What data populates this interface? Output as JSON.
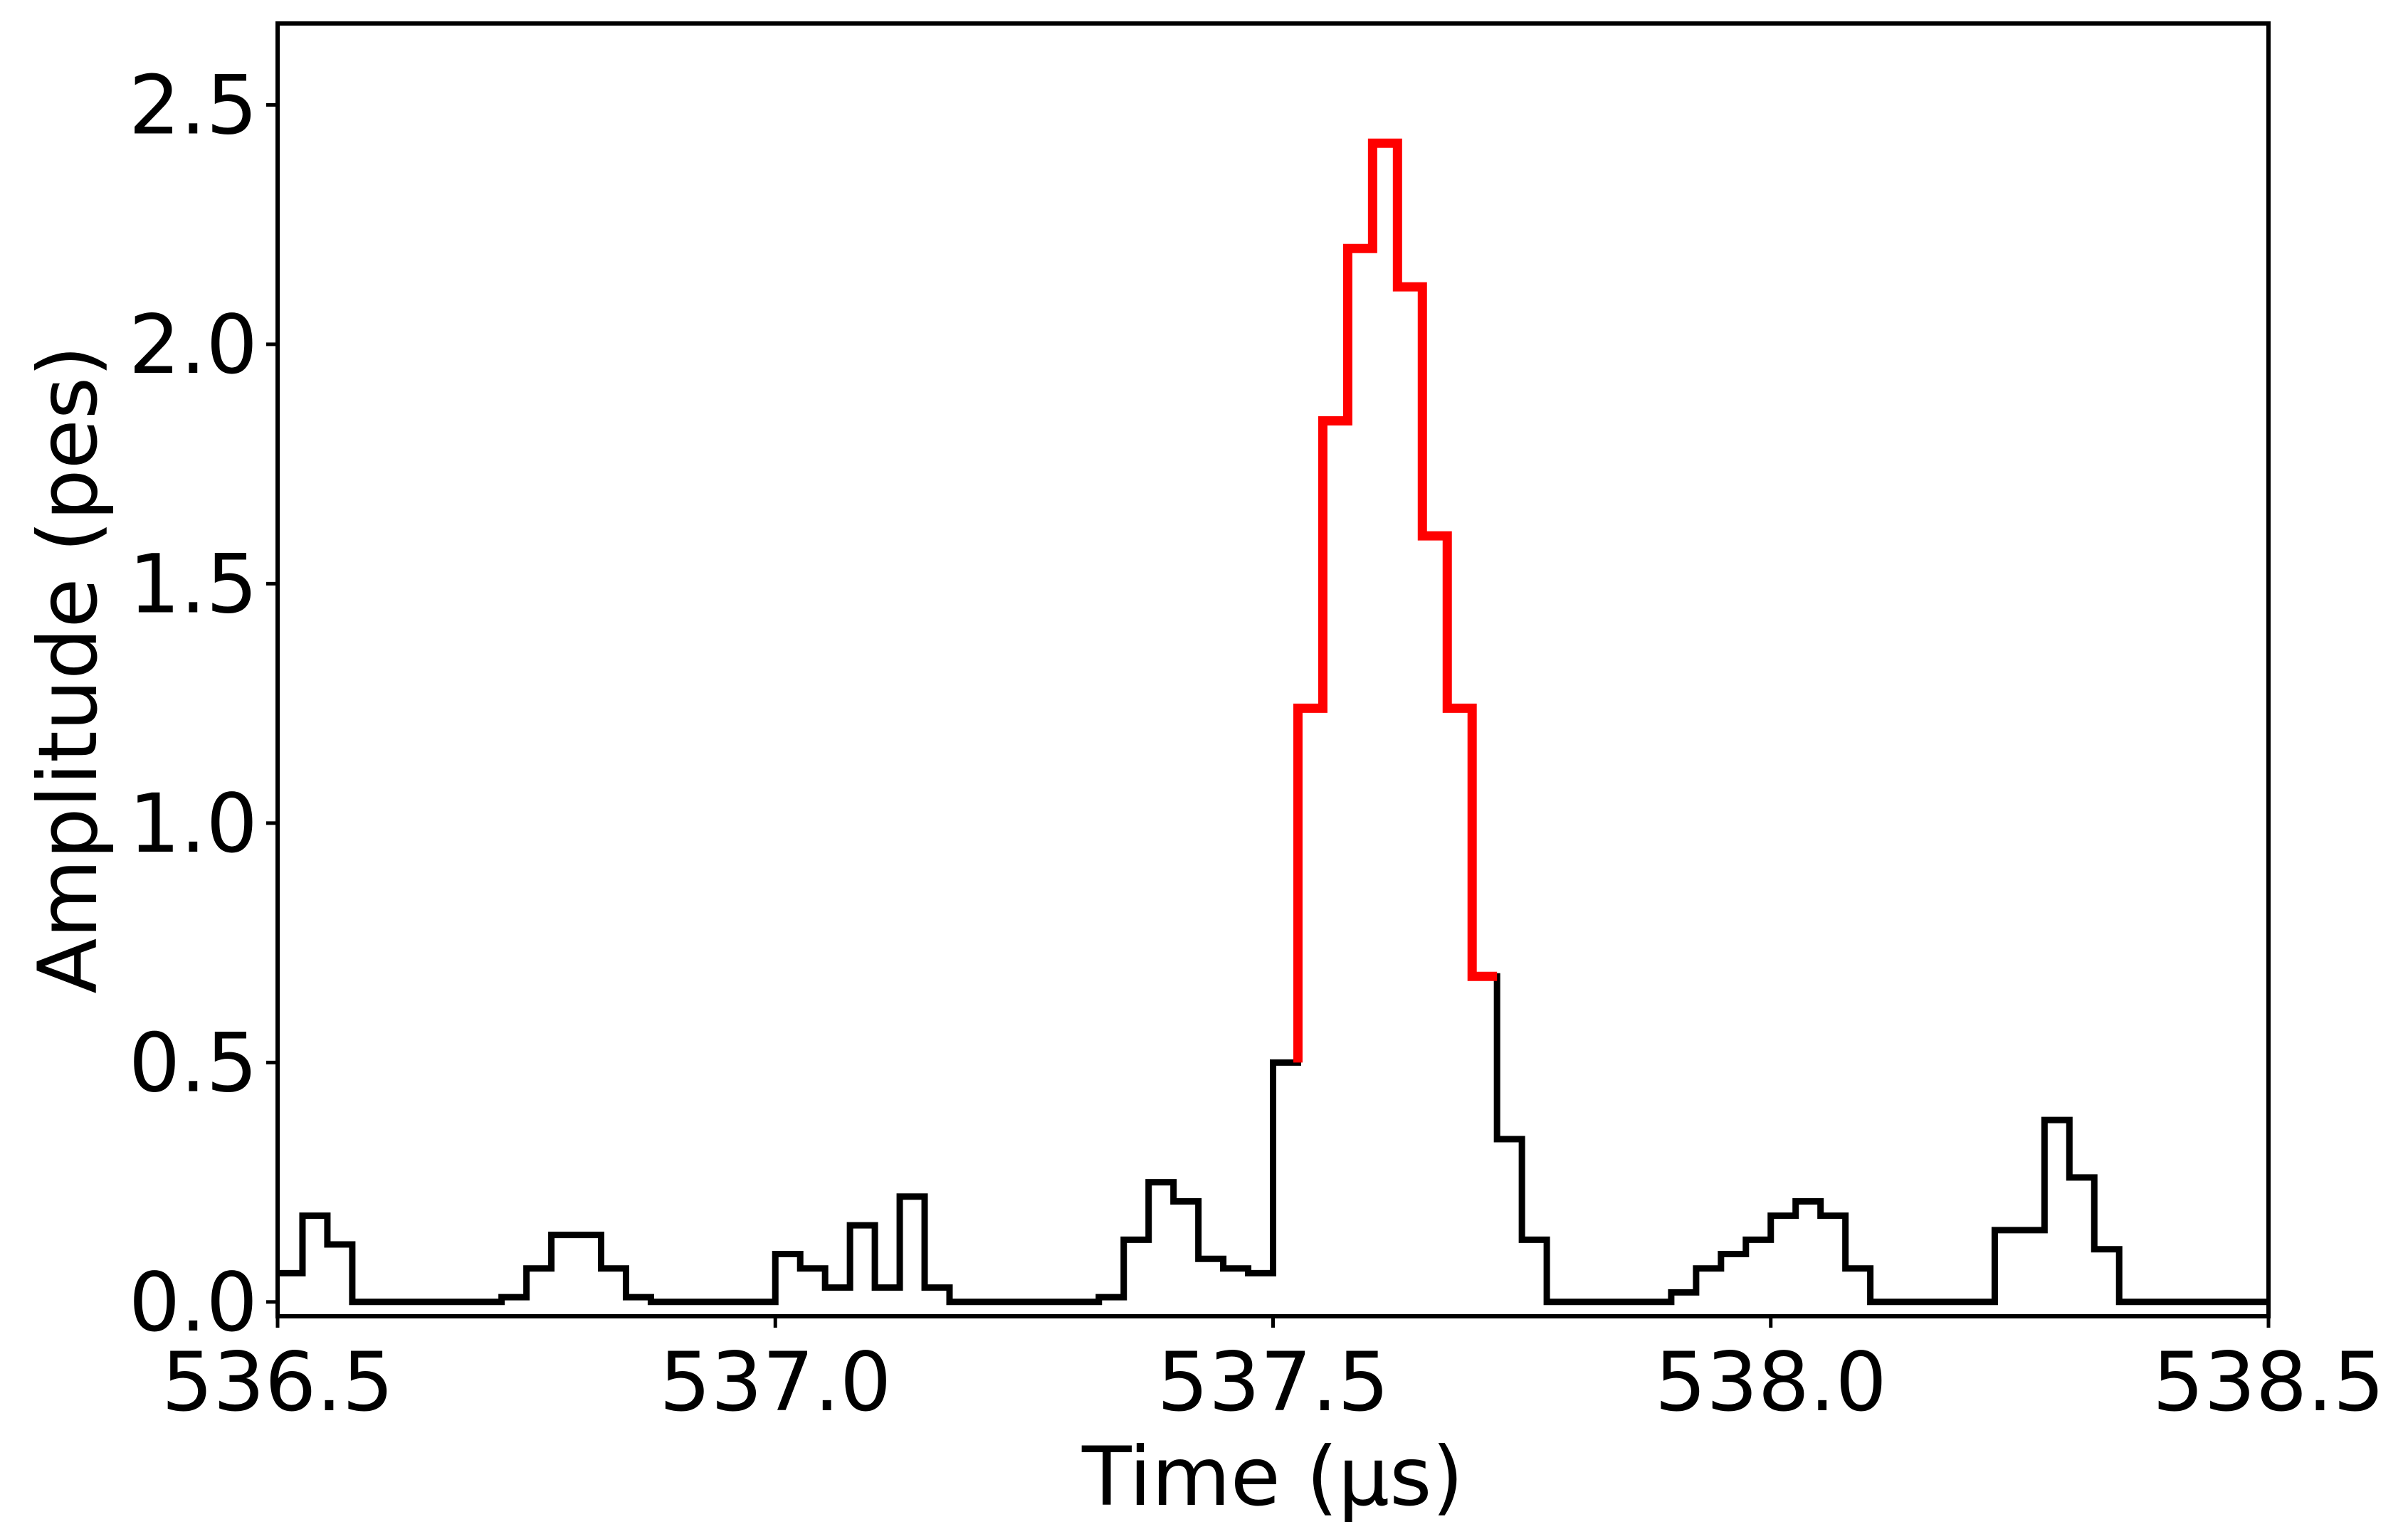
{
  "chart_data": {
    "type": "line",
    "title": "",
    "xlabel": "Time (μs)",
    "ylabel": "Amplitude (pes)",
    "xlim": [
      536.5,
      538.5
    ],
    "ylim": [
      -0.03,
      2.67
    ],
    "xticks": [
      "536.5",
      "537.0",
      "537.5",
      "538.0",
      "538.5"
    ],
    "yticks": [
      "0.0",
      "0.5",
      "1.0",
      "1.5",
      "2.0",
      "2.5"
    ],
    "grid": false,
    "legend": "none",
    "step_width": 0.025,
    "series": [
      {
        "color": "#000000",
        "x": [
          536.5,
          536.525,
          536.55,
          536.575,
          536.6,
          536.625,
          536.65,
          536.675,
          536.7,
          536.725,
          536.75,
          536.775,
          536.8,
          536.825,
          536.85,
          536.875,
          536.9,
          536.925,
          536.95,
          536.975,
          537.0,
          537.025,
          537.05,
          537.075,
          537.1,
          537.125,
          537.15,
          537.175,
          537.2,
          537.225,
          537.25,
          537.275,
          537.3,
          537.325,
          537.35,
          537.375,
          537.4,
          537.425,
          537.45,
          537.475,
          537.5,
          537.525,
          537.55,
          537.575,
          537.6,
          537.625,
          537.65,
          537.675,
          537.7,
          537.725,
          537.75,
          537.775,
          537.8,
          537.825,
          537.85,
          537.875,
          537.9,
          537.925,
          537.95,
          537.975,
          538.0,
          538.025,
          538.05,
          538.075,
          538.1,
          538.125,
          538.15,
          538.175,
          538.2,
          538.225,
          538.25,
          538.275,
          538.3,
          538.325,
          538.35,
          538.375,
          538.4,
          538.425,
          538.45,
          538.475
        ],
        "values": [
          0.06,
          0.18,
          0.12,
          0,
          0,
          0,
          0,
          0,
          0,
          0.01,
          0.07,
          0.14,
          0.14,
          0.07,
          0.01,
          0,
          0,
          0,
          0,
          0,
          0.1,
          0.07,
          0.03,
          0.16,
          0.03,
          0.22,
          0.03,
          0,
          0,
          0,
          0,
          0,
          0,
          0.01,
          0.13,
          0.25,
          0.21,
          0.09,
          0.07,
          0.06,
          0.5,
          1.24,
          1.84,
          2.2,
          2.42,
          2.12,
          1.6,
          1.24,
          0.68,
          0.34,
          0.13,
          0,
          0,
          0,
          0,
          0,
          0.02,
          0.07,
          0.1,
          0.13,
          0.18,
          0.21,
          0.18,
          0.07,
          0,
          0,
          0,
          0,
          0,
          0.15,
          0.15,
          0.38,
          0.26,
          0.11,
          0,
          0,
          0,
          0,
          0,
          0
        ]
      },
      {
        "color": "#ff0000",
        "x": [
          537.525,
          537.55,
          537.575,
          537.6,
          537.625,
          537.65,
          537.675,
          537.7
        ],
        "values": [
          1.24,
          1.84,
          2.2,
          2.42,
          2.12,
          1.6,
          1.24,
          0.68
        ],
        "start_from": 0.5
      }
    ]
  }
}
